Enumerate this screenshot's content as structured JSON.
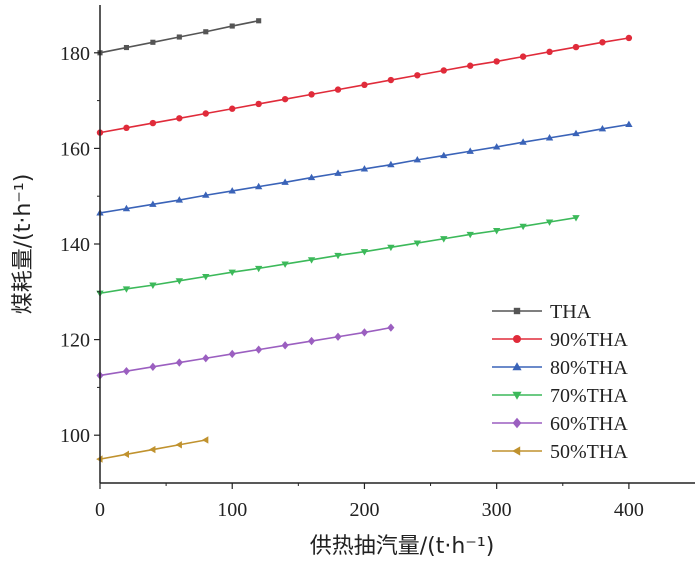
{
  "chart_data": {
    "type": "line",
    "xlabel": "供热抽汽量/(t·h⁻¹)",
    "ylabel": "煤耗量/(t·h⁻¹)",
    "xlim": [
      0,
      450
    ],
    "ylim": [
      90,
      190
    ],
    "xticks": [
      0,
      100,
      200,
      300,
      400
    ],
    "yticks": [
      100,
      120,
      140,
      160,
      180
    ],
    "grid": false,
    "legend_position": "bottom-right",
    "series": [
      {
        "name": "THA",
        "marker": "square",
        "color": "#555555",
        "x": [
          0,
          20,
          40,
          60,
          80,
          100,
          120
        ],
        "y": [
          180.0,
          181.1,
          182.2,
          183.3,
          184.4,
          185.6,
          186.7
        ]
      },
      {
        "name": "90%THA",
        "marker": "circle",
        "color": "#e02b3a",
        "x": [
          0,
          20,
          40,
          60,
          80,
          100,
          120,
          140,
          160,
          180,
          200,
          220,
          240,
          260,
          280,
          300,
          320,
          340,
          360,
          380,
          400
        ],
        "y": [
          163.3,
          164.3,
          165.3,
          166.3,
          167.3,
          168.3,
          169.3,
          170.3,
          171.3,
          172.3,
          173.3,
          174.3,
          175.3,
          176.3,
          177.3,
          178.2,
          179.2,
          180.2,
          181.2,
          182.2,
          183.1
        ]
      },
      {
        "name": "80%THA",
        "marker": "triangle-up",
        "color": "#3a63b8",
        "x": [
          0,
          20,
          40,
          60,
          80,
          100,
          120,
          140,
          160,
          180,
          200,
          220,
          240,
          260,
          280,
          300,
          320,
          340,
          360,
          380,
          400
        ],
        "y": [
          146.5,
          147.4,
          148.3,
          149.2,
          150.2,
          151.1,
          152.0,
          152.9,
          153.9,
          154.8,
          155.7,
          156.6,
          157.6,
          158.5,
          159.4,
          160.3,
          161.3,
          162.2,
          163.1,
          164.1,
          165.0
        ]
      },
      {
        "name": "70%THA",
        "marker": "triangle-down",
        "color": "#3cb95a",
        "x": [
          0,
          20,
          40,
          60,
          80,
          100,
          120,
          140,
          160,
          180,
          200,
          220,
          240,
          260,
          280,
          300,
          320,
          340,
          360
        ],
        "y": [
          129.7,
          130.6,
          131.4,
          132.3,
          133.2,
          134.1,
          134.9,
          135.8,
          136.7,
          137.6,
          138.4,
          139.3,
          140.2,
          141.1,
          142.0,
          142.8,
          143.7,
          144.6,
          145.5
        ]
      },
      {
        "name": "60%THA",
        "marker": "diamond",
        "color": "#9b5fc0",
        "x": [
          0,
          20,
          40,
          60,
          80,
          100,
          120,
          140,
          160,
          180,
          200,
          220
        ],
        "y": [
          112.5,
          113.4,
          114.3,
          115.2,
          116.1,
          117.0,
          117.9,
          118.8,
          119.7,
          120.6,
          121.5,
          122.5
        ]
      },
      {
        "name": "50%THA",
        "marker": "triangle-left",
        "color": "#c0922e",
        "x": [
          0,
          20,
          40,
          60,
          80
        ],
        "y": [
          95.0,
          96.0,
          97.0,
          98.0,
          99.0
        ]
      }
    ]
  }
}
